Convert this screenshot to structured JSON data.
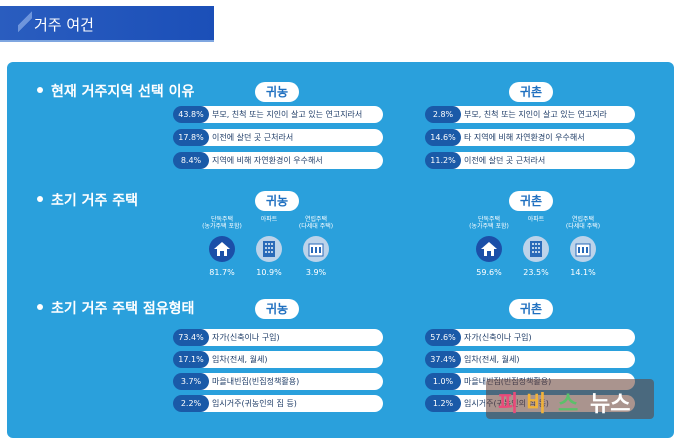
{
  "header": {
    "title": "거주 여건"
  },
  "colors": {
    "panel": "#2aa0dc",
    "dark_pill": "#1a5aa8",
    "header": "#2a5dbf"
  },
  "columns": {
    "left": "귀농",
    "right": "귀촌"
  },
  "section1": {
    "title": "현재 거주지역 선택 이유",
    "left": [
      {
        "pct": "43.8%",
        "label": "부모, 친척 또는 지인이 살고 있는 연고지라서"
      },
      {
        "pct": "17.8%",
        "label": "이전에 살던 곳 근처라서"
      },
      {
        "pct": "8.4%",
        "label": "지역에 비해 자연환경이 우수해서"
      }
    ],
    "right": [
      {
        "pct": "2.8%",
        "label": "부모, 친척 또는 지인이 살고 있는 연고지라"
      },
      {
        "pct": "14.6%",
        "label": "타 지역에 비해 자연환경이 우수해서"
      },
      {
        "pct": "11.2%",
        "label": "이전에 살던 곳 근처라서"
      }
    ]
  },
  "section2": {
    "title": "초기 거주 주택",
    "types": [
      {
        "label1": "단독주택",
        "label2": "(농가주택 포함)",
        "icon": "house-icon"
      },
      {
        "label1": "아파트",
        "label2": "",
        "icon": "apartment-icon"
      },
      {
        "label1": "연립주택",
        "label2": "(다세대 주택)",
        "icon": "row-house-icon"
      }
    ],
    "left_values": [
      "81.7%",
      "10.9%",
      "3.9%"
    ],
    "right_values": [
      "59.6%",
      "23.5%",
      "14.1%"
    ]
  },
  "section3": {
    "title": "초기 거주 주택 점유형태",
    "left": [
      {
        "pct": "73.4%",
        "label": "자가(신축이나 구입)"
      },
      {
        "pct": "17.1%",
        "label": "임차(전세, 월세)"
      },
      {
        "pct": "3.7%",
        "label": "마을내빈집(빈집정책활용)"
      },
      {
        "pct": "2.2%",
        "label": "임시거주(귀농인의 집 등)"
      }
    ],
    "right": [
      {
        "pct": "57.6%",
        "label": "자가(신축이나 구입)"
      },
      {
        "pct": "37.4%",
        "label": "임차(전세, 월세)"
      },
      {
        "pct": "1.0%",
        "label": "마을내빈집(빈집정책활용)"
      },
      {
        "pct": "1.2%",
        "label": "임시거주(귀농인의 집 등)"
      }
    ]
  },
  "watermark": {
    "c1": "피",
    "c2": "비",
    "c3": "스",
    "c4": "뉴스"
  }
}
